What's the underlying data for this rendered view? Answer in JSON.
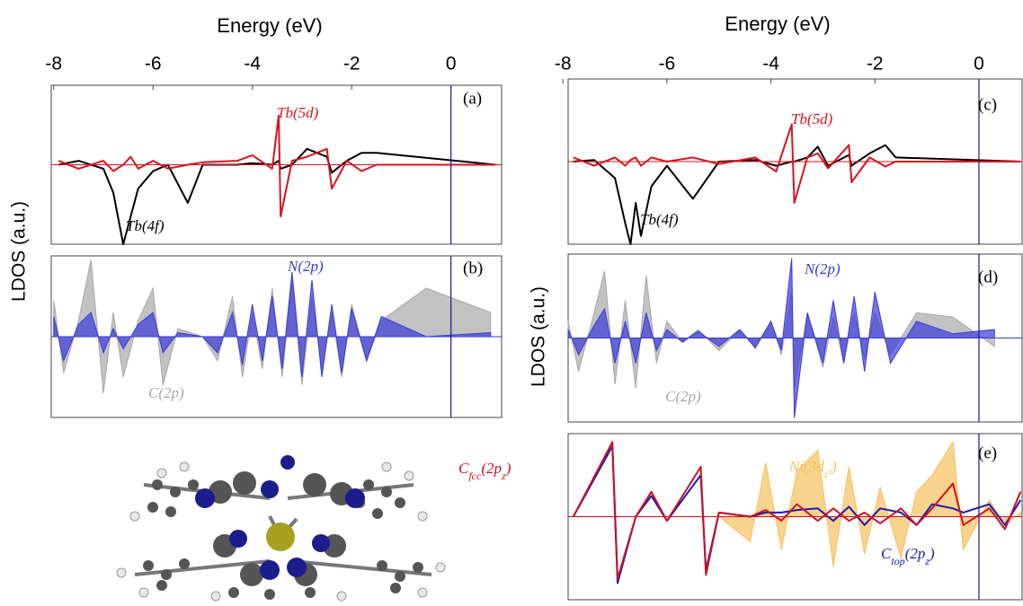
{
  "chart_data": [
    {
      "type": "line",
      "title": "Energy (eV)",
      "ylabel": "LDOS (a.u.)",
      "panel": "(a)",
      "xlim": [
        -8.05,
        1.02
      ],
      "xticks": [
        -8,
        -6,
        -4,
        -2,
        0
      ],
      "ylim": [
        -1,
        1
      ],
      "vline": 0,
      "x": [
        -7.9,
        -7.5,
        -7.0,
        -6.8,
        -6.6,
        -6.45,
        -6.3,
        -6.0,
        -5.7,
        -5.3,
        -5.0,
        -4.3,
        -4.0,
        -3.6,
        -3.47,
        -3.43,
        -3.2,
        -2.9,
        -2.5,
        -2.4,
        -2.1,
        -1.8,
        -1.5,
        0.9
      ],
      "series": [
        {
          "label": [
            "Tb(4f)"
          ],
          "color": "#000000",
          "values": [
            0,
            0.05,
            -0.05,
            -0.35,
            -1.0,
            -0.65,
            -0.3,
            -0.08,
            0,
            -0.48,
            0,
            0,
            0.02,
            0,
            0.05,
            -0.05,
            0,
            0.2,
            0.1,
            -0.1,
            0.05,
            0.15,
            0.15,
            0
          ]
        },
        {
          "label": [
            "Tb(5d)"
          ],
          "color": "#d8141e",
          "values": [
            0.05,
            -0.05,
            0.05,
            -0.08,
            0,
            0.1,
            -0.05,
            0.05,
            -0.05,
            0,
            0.03,
            0.05,
            0.12,
            -0.05,
            0.62,
            -0.65,
            0.05,
            0.1,
            0.2,
            -0.3,
            0.05,
            -0.08,
            0,
            0
          ]
        }
      ]
    },
    {
      "type": "area",
      "panel": "(b)",
      "xlim": [
        -8.05,
        1.02
      ],
      "ylim": [
        -1,
        1
      ],
      "vline": 0,
      "x": [
        -8.0,
        -7.8,
        -7.5,
        -7.25,
        -7.0,
        -6.8,
        -6.6,
        -6.3,
        -6.0,
        -5.8,
        -5.5,
        -5.0,
        -4.7,
        -4.4,
        -4.2,
        -4.0,
        -3.8,
        -3.6,
        -3.4,
        -3.2,
        -3.0,
        -2.8,
        -2.6,
        -2.4,
        -2.2,
        -2.0,
        -1.7,
        -1.4,
        -0.5,
        0.8
      ],
      "series": [
        {
          "label": [
            "C(2p)"
          ],
          "color": "#a8a8a8",
          "values": [
            0.45,
            -0.45,
            0.2,
            0.95,
            -0.7,
            0.3,
            -0.5,
            0.2,
            0.6,
            -0.6,
            0.1,
            0,
            -0.3,
            0.5,
            -0.5,
            0.3,
            -0.4,
            0.6,
            -0.5,
            0.7,
            -0.6,
            0.5,
            -0.4,
            0.3,
            -0.5,
            0.4,
            -0.3,
            0.2,
            0.6,
            0.3
          ]
        },
        {
          "label": [
            "N(2p)"
          ],
          "color": "#3a3ad8",
          "values": [
            0.25,
            -0.3,
            0.15,
            0.3,
            -0.2,
            0.1,
            -0.15,
            0.15,
            0.3,
            -0.2,
            0.05,
            0,
            -0.2,
            0.3,
            -0.35,
            0.4,
            -0.3,
            0.5,
            -0.4,
            0.8,
            -0.5,
            0.7,
            -0.5,
            0.4,
            -0.45,
            0.35,
            -0.3,
            0.25,
            0,
            0.05
          ]
        }
      ]
    },
    {
      "type": "line",
      "title": "Energy (eV)",
      "ylabel": "LDOS (a.u.)",
      "panel": "(c)",
      "xlim": [
        -7.9,
        0.83
      ],
      "xticks": [
        -8,
        -6,
        -4,
        -2,
        0
      ],
      "ylim": [
        -1,
        1
      ],
      "vline": 0,
      "x": [
        -7.8,
        -7.4,
        -7.0,
        -6.8,
        -6.7,
        -6.6,
        -6.5,
        -6.3,
        -6.0,
        -5.5,
        -5.0,
        -4.3,
        -3.9,
        -3.6,
        -3.55,
        -3.3,
        -3.1,
        -2.9,
        -2.5,
        -2.45,
        -2.1,
        -1.8,
        -1.6,
        0.8
      ],
      "series": [
        {
          "label": [
            "Tb(4f)"
          ],
          "color": "#000000",
          "values": [
            0,
            0.02,
            -0.2,
            -0.75,
            -1.0,
            -0.5,
            -0.9,
            -0.3,
            -0.05,
            -0.45,
            0,
            0.02,
            -0.05,
            0,
            0,
            0.05,
            0.18,
            -0.05,
            0.08,
            -0.05,
            0.1,
            0.2,
            0.05,
            0
          ]
        },
        {
          "label": [
            "Tb(5d)"
          ],
          "color": "#d8141e",
          "values": [
            0.05,
            -0.05,
            0.05,
            -0.05,
            0.02,
            0.05,
            -0.05,
            0.05,
            0,
            0.05,
            -0.03,
            0.05,
            -0.12,
            0.45,
            -0.5,
            0.05,
            0.1,
            -0.08,
            0.2,
            -0.25,
            0.05,
            -0.06,
            0,
            0
          ]
        }
      ]
    },
    {
      "type": "area",
      "panel": "(d)",
      "xlim": [
        -7.9,
        0.83
      ],
      "ylim": [
        -1,
        1
      ],
      "vline": 0,
      "x": [
        -7.9,
        -7.7,
        -7.4,
        -7.2,
        -7.0,
        -6.8,
        -6.6,
        -6.4,
        -6.2,
        -6.0,
        -5.7,
        -5.4,
        -5.0,
        -4.6,
        -4.3,
        -4.0,
        -3.8,
        -3.6,
        -3.55,
        -3.3,
        -3.0,
        -2.8,
        -2.6,
        -2.4,
        -2.2,
        -2.0,
        -1.7,
        -1.2,
        -0.5,
        0.3
      ],
      "series": [
        {
          "label": [
            "C(2p)"
          ],
          "color": "#a8a8a8",
          "values": [
            0.2,
            -0.4,
            0.3,
            0.8,
            -0.55,
            0.45,
            -0.6,
            0.75,
            -0.3,
            0.2,
            -0.05,
            0.1,
            -0.15,
            0.1,
            -0.1,
            0.2,
            -0.2,
            0.55,
            -0.6,
            0.3,
            -0.35,
            0.25,
            -0.3,
            0.3,
            -0.25,
            0.3,
            -0.2,
            0.3,
            0.25,
            -0.1
          ]
        },
        {
          "label": [
            "N(2p)"
          ],
          "color": "#3a3ad8",
          "values": [
            0.1,
            -0.2,
            0.15,
            0.35,
            -0.3,
            0.2,
            -0.3,
            0.3,
            -0.15,
            0.1,
            -0.05,
            0.08,
            -0.1,
            0.1,
            -0.12,
            0.2,
            -0.15,
            0.95,
            -0.95,
            0.3,
            -0.3,
            0.45,
            -0.3,
            0.5,
            -0.4,
            0.55,
            -0.3,
            0.2,
            0.05,
            0.1
          ]
        }
      ]
    },
    {
      "type": "line",
      "panel": "(e)",
      "xlim": [
        -7.9,
        0.83
      ],
      "ylim": [
        -1,
        1
      ],
      "vline": 0,
      "x": [
        -7.8,
        -7.05,
        -6.95,
        -6.6,
        -6.3,
        -6.0,
        -5.35,
        -5.25,
        -5.0,
        -4.4,
        -4.1,
        -3.8,
        -3.5,
        -3.1,
        -2.8,
        -2.5,
        -2.2,
        -1.9,
        -1.5,
        -1.2,
        -0.9,
        -0.5,
        -0.3,
        0.2,
        0.5,
        0.8
      ],
      "series": [
        {
          "label": [
            "Ni(3d",
            "z²",
            ")"
          ],
          "color": "#f5c15e",
          "area": true,
          "values": [
            0,
            0,
            0,
            0,
            0,
            0,
            0,
            0,
            0,
            -0.3,
            0.65,
            -0.4,
            0.55,
            0.8,
            -0.6,
            0.6,
            -0.45,
            0.35,
            -0.5,
            0.3,
            0.5,
            0.9,
            -0.4,
            0.2,
            -0.1,
            0.05
          ]
        },
        {
          "label": [
            "C",
            "top",
            "(2p",
            "z",
            ")"
          ],
          "color": "#1a1ab0",
          "values": [
            0,
            0.85,
            -0.8,
            0,
            0.25,
            -0.05,
            0.5,
            -0.65,
            0.05,
            0,
            0.05,
            0.05,
            0.08,
            0.1,
            -0.05,
            0.12,
            -0.1,
            0.1,
            0.05,
            -0.1,
            0.15,
            0.1,
            0.05,
            0.15,
            -0.1,
            0.2
          ]
        },
        {
          "label": [
            "C",
            "fcc",
            "(2p",
            "z",
            ")"
          ],
          "color": "#cc1020",
          "values": [
            0,
            0.9,
            -0.75,
            0,
            0.3,
            -0.05,
            0.6,
            -0.7,
            0.05,
            0,
            0.08,
            -0.05,
            0.15,
            -0.05,
            0.1,
            -0.05,
            0.05,
            -0.08,
            0.1,
            -0.1,
            0.1,
            0.4,
            -0.1,
            0.1,
            -0.15,
            0.3
          ]
        }
      ]
    }
  ]
}
